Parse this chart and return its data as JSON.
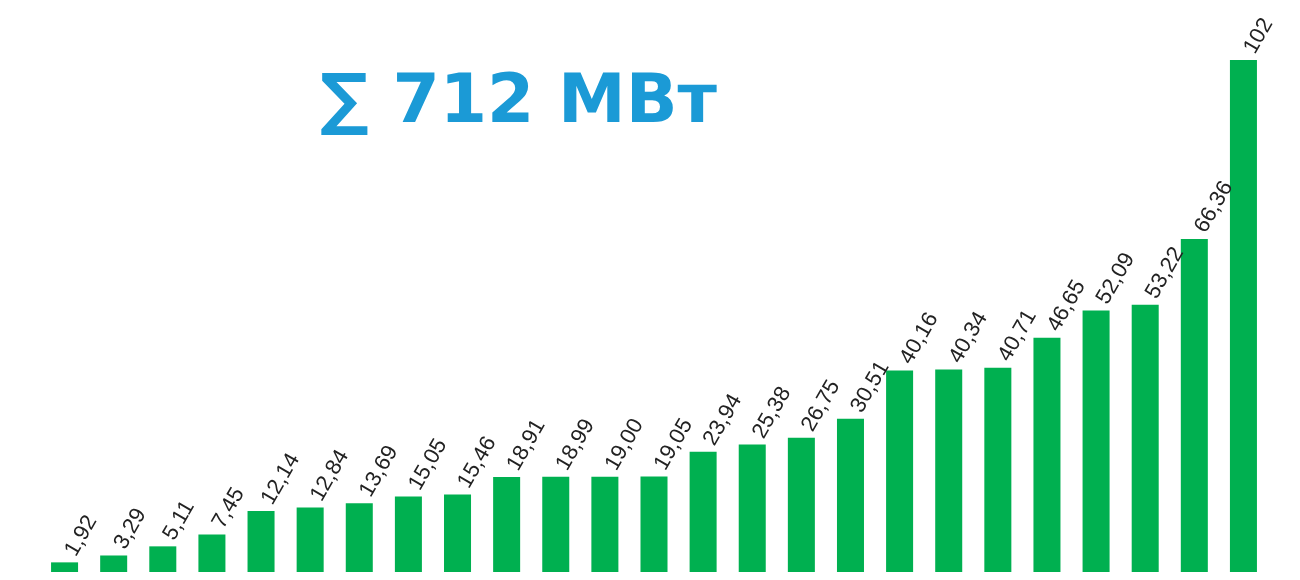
{
  "chart_data": {
    "type": "bar",
    "title": "∑ 712 МВт",
    "categories": [
      null,
      null,
      null,
      null,
      null,
      null,
      null,
      null,
      null,
      null,
      null,
      null,
      null,
      null,
      null,
      null,
      null,
      null,
      null,
      null,
      null,
      null,
      null,
      null,
      null
    ],
    "values": [
      1.92,
      3.29,
      5.11,
      7.45,
      12.14,
      12.84,
      13.69,
      15.05,
      15.46,
      18.91,
      18.99,
      19.0,
      19.05,
      23.94,
      25.38,
      26.75,
      30.51,
      40.16,
      40.34,
      40.71,
      46.65,
      52.09,
      53.22,
      66.36,
      102
    ],
    "value_labels": [
      "1,92",
      "3,29",
      "5,11",
      "7,45",
      "12,14",
      "12,84",
      "13,69",
      "15,05",
      "15,46",
      "18,91",
      "18,99",
      "19,00",
      "19,05",
      "23,94",
      "25,38",
      "26,75",
      "30,51",
      "40,16",
      "40,34",
      "40,71",
      "46,65",
      "52,09",
      "53,22",
      "66,36",
      "102"
    ],
    "color": "#00b050",
    "ylim": [
      0,
      102
    ],
    "tick_labels": false
  }
}
